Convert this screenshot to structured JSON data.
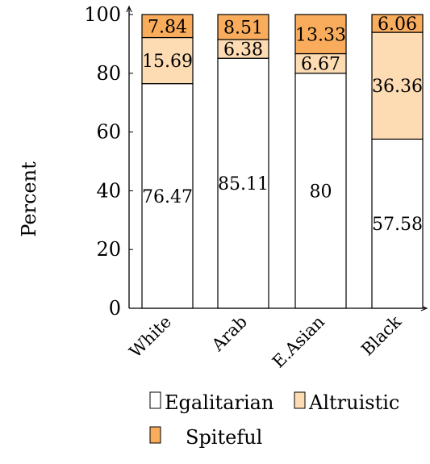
{
  "chart_data": {
    "type": "bar",
    "stacked": true,
    "ylabel": "Percent",
    "xlabel": "",
    "title": "",
    "ylim": [
      0,
      100
    ],
    "yticks": [
      0,
      20,
      40,
      60,
      80,
      100
    ],
    "categories": [
      "White",
      "Arab",
      "E.Asian",
      "Black"
    ],
    "series": [
      {
        "name": "Egalitarian",
        "color": "#ffffff",
        "values": [
          76.47,
          85.11,
          80,
          57.58
        ],
        "labels": [
          "76.47",
          "85.11",
          "80",
          "57.58"
        ]
      },
      {
        "name": "Altruistic",
        "color": "#fddcb4",
        "values": [
          15.69,
          6.38,
          6.67,
          36.36
        ],
        "labels": [
          "15.69",
          "6.38",
          "6.67",
          "36.36"
        ]
      },
      {
        "name": "Spiteful",
        "color": "#f9ad5c",
        "values": [
          7.84,
          8.51,
          13.33,
          6.06
        ],
        "labels": [
          "7.84",
          "8.51",
          "13.33",
          "6.06"
        ]
      }
    ],
    "grid": false,
    "legend_position": "bottom"
  }
}
